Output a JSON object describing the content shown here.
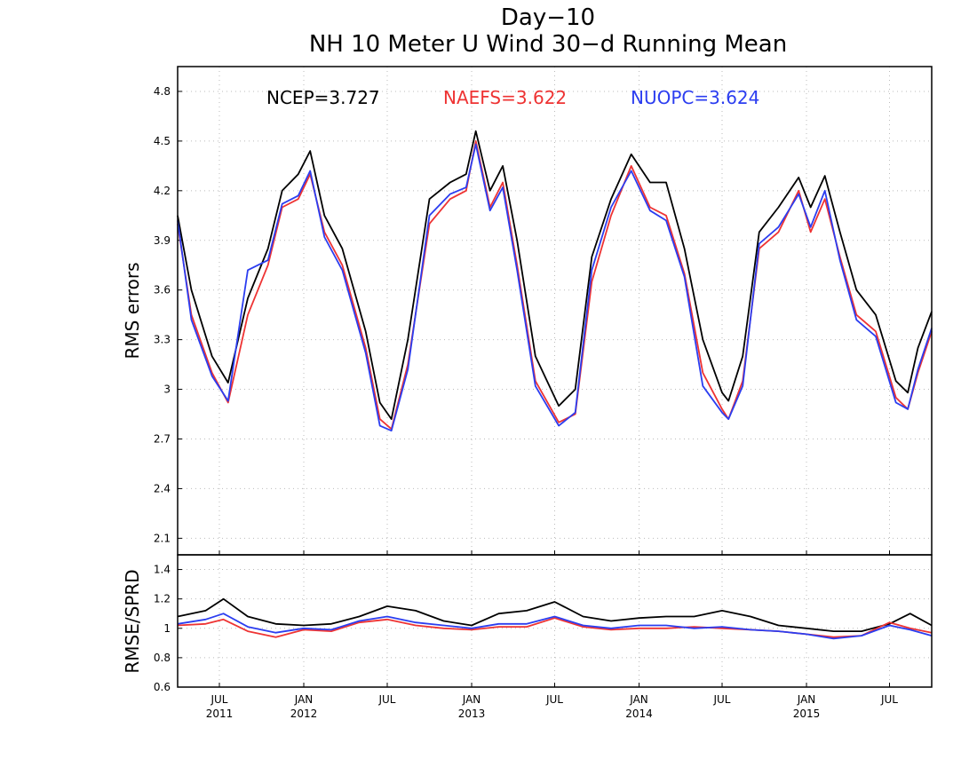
{
  "chart_data": [
    {
      "type": "line",
      "title": "Day−10",
      "subtitle": "NH 10 Meter U Wind 30−d Running Mean",
      "ylabel": "RMS errors",
      "xlabel": "",
      "ylim": [
        2.0,
        4.95
      ],
      "yticks": [
        "2.1",
        "2.4",
        "2.7",
        "3",
        "3.3",
        "3.6",
        "3.9",
        "4.2",
        "4.5",
        "4.8"
      ],
      "grid": true,
      "x_range": [
        "2011-04-01",
        "2015-10-01"
      ],
      "x_ticks": [
        {
          "date": "2011-07-01",
          "month": "JUL",
          "year": "2011"
        },
        {
          "date": "2012-01-01",
          "month": "JAN",
          "year": "2012"
        },
        {
          "date": "2012-07-01",
          "month": "JUL",
          "year": ""
        },
        {
          "date": "2013-01-01",
          "month": "JAN",
          "year": "2013"
        },
        {
          "date": "2013-07-01",
          "month": "JUL",
          "year": ""
        },
        {
          "date": "2014-01-01",
          "month": "JAN",
          "year": "2014"
        },
        {
          "date": "2014-07-01",
          "month": "JUL",
          "year": ""
        },
        {
          "date": "2015-01-01",
          "month": "JAN",
          "year": "2015"
        },
        {
          "date": "2015-07-01",
          "month": "JUL",
          "year": ""
        }
      ],
      "annotations": [
        {
          "text": "NCEP=3.727",
          "color": "#000000"
        },
        {
          "text": "NAEFS=3.622",
          "color": "#ee3333"
        },
        {
          "text": "NUOPC=3.624",
          "color": "#2b3df0"
        }
      ],
      "series": [
        {
          "color": "#000000",
          "x": [
            "2011-04-01",
            "2011-05-01",
            "2011-06-15",
            "2011-07-20",
            "2011-09-01",
            "2011-10-15",
            "2011-11-15",
            "2011-12-20",
            "2012-01-15",
            "2012-02-15",
            "2012-03-25",
            "2012-05-15",
            "2012-06-15",
            "2012-07-10",
            "2012-08-15",
            "2012-10-01",
            "2012-11-15",
            "2012-12-20",
            "2013-01-10",
            "2013-02-10",
            "2013-03-10",
            "2013-04-10",
            "2013-05-20",
            "2013-07-10",
            "2013-08-15",
            "2013-09-20",
            "2013-11-01",
            "2013-12-15",
            "2014-01-25",
            "2014-03-01",
            "2014-04-10",
            "2014-05-20",
            "2014-07-01",
            "2014-07-15",
            "2014-08-15",
            "2014-09-20",
            "2014-11-01",
            "2014-12-15",
            "2015-01-10",
            "2015-02-10",
            "2015-03-15",
            "2015-04-20",
            "2015-06-01",
            "2015-07-15",
            "2015-08-10",
            "2015-09-01",
            "2015-10-01"
          ],
          "y": [
            4.05,
            3.6,
            3.2,
            3.04,
            3.55,
            3.85,
            4.2,
            4.3,
            4.44,
            4.05,
            3.85,
            3.35,
            2.92,
            2.82,
            3.3,
            4.15,
            4.25,
            4.3,
            4.56,
            4.2,
            4.35,
            3.9,
            3.2,
            2.9,
            3.0,
            3.8,
            4.15,
            4.42,
            4.25,
            4.25,
            3.85,
            3.3,
            2.98,
            2.93,
            3.2,
            3.95,
            4.1,
            4.28,
            4.1,
            4.29,
            3.95,
            3.6,
            3.45,
            3.05,
            2.98,
            3.25,
            3.47
          ]
        },
        {
          "color": "#ee3333",
          "x": [
            "2011-04-01",
            "2011-05-01",
            "2011-06-15",
            "2011-07-20",
            "2011-09-01",
            "2011-10-15",
            "2011-11-15",
            "2011-12-20",
            "2012-01-15",
            "2012-02-15",
            "2012-03-25",
            "2012-05-15",
            "2012-06-15",
            "2012-07-10",
            "2012-08-15",
            "2012-10-01",
            "2012-11-15",
            "2012-12-20",
            "2013-01-10",
            "2013-02-10",
            "2013-03-10",
            "2013-04-10",
            "2013-05-20",
            "2013-07-10",
            "2013-08-15",
            "2013-09-20",
            "2013-11-01",
            "2013-12-15",
            "2014-01-25",
            "2014-03-01",
            "2014-04-10",
            "2014-05-20",
            "2014-07-01",
            "2014-07-15",
            "2014-08-15",
            "2014-09-20",
            "2014-11-01",
            "2014-12-15",
            "2015-01-10",
            "2015-02-10",
            "2015-03-15",
            "2015-04-20",
            "2015-06-01",
            "2015-07-15",
            "2015-08-10",
            "2015-09-01",
            "2015-10-01"
          ],
          "y": [
            4.0,
            3.45,
            3.1,
            2.92,
            3.45,
            3.75,
            4.1,
            4.15,
            4.3,
            3.95,
            3.75,
            3.25,
            2.82,
            2.76,
            3.15,
            4.0,
            4.15,
            4.2,
            4.5,
            4.1,
            4.25,
            3.75,
            3.05,
            2.8,
            2.85,
            3.65,
            4.05,
            4.35,
            4.1,
            4.05,
            3.7,
            3.1,
            2.88,
            2.82,
            3.05,
            3.85,
            3.95,
            4.2,
            3.95,
            4.15,
            3.8,
            3.45,
            3.35,
            2.95,
            2.88,
            3.1,
            3.35
          ]
        },
        {
          "color": "#2b3df0",
          "x": [
            "2011-04-01",
            "2011-05-01",
            "2011-06-15",
            "2011-07-20",
            "2011-09-01",
            "2011-10-15",
            "2011-11-15",
            "2011-12-20",
            "2012-01-15",
            "2012-02-15",
            "2012-03-25",
            "2012-05-15",
            "2012-06-15",
            "2012-07-10",
            "2012-08-15",
            "2012-10-01",
            "2012-11-15",
            "2012-12-20",
            "2013-01-10",
            "2013-02-10",
            "2013-03-10",
            "2013-04-10",
            "2013-05-20",
            "2013-07-10",
            "2013-08-15",
            "2013-09-20",
            "2013-11-01",
            "2013-12-15",
            "2014-01-25",
            "2014-03-01",
            "2014-04-10",
            "2014-05-20",
            "2014-07-01",
            "2014-07-15",
            "2014-08-15",
            "2014-09-20",
            "2014-11-01",
            "2014-12-15",
            "2015-01-10",
            "2015-02-10",
            "2015-03-15",
            "2015-04-20",
            "2015-06-01",
            "2015-07-15",
            "2015-08-10",
            "2015-09-01",
            "2015-10-01"
          ],
          "y": [
            4.02,
            3.42,
            3.08,
            2.93,
            3.72,
            3.78,
            4.12,
            4.17,
            4.32,
            3.92,
            3.72,
            3.22,
            2.78,
            2.75,
            3.12,
            4.05,
            4.18,
            4.22,
            4.48,
            4.08,
            4.22,
            3.72,
            3.02,
            2.78,
            2.86,
            3.72,
            4.1,
            4.32,
            4.08,
            4.02,
            3.68,
            3.02,
            2.86,
            2.82,
            3.02,
            3.88,
            3.98,
            4.18,
            3.98,
            4.2,
            3.78,
            3.42,
            3.32,
            2.92,
            2.88,
            3.12,
            3.37
          ]
        }
      ]
    },
    {
      "type": "line",
      "title": "",
      "ylabel": "RMSE/SPRD",
      "xlabel": "",
      "ylim": [
        0.6,
        1.5
      ],
      "yticks": [
        "0.6",
        "0.8",
        "1",
        "1.2",
        "1.4"
      ],
      "grid": true,
      "x_range": [
        "2011-04-01",
        "2015-10-01"
      ],
      "series": [
        {
          "color": "#000000",
          "x": [
            "2011-04-01",
            "2011-06-01",
            "2011-07-10",
            "2011-09-01",
            "2011-11-01",
            "2012-01-01",
            "2012-03-01",
            "2012-05-01",
            "2012-07-01",
            "2012-09-01",
            "2012-11-01",
            "2013-01-01",
            "2013-03-01",
            "2013-05-01",
            "2013-07-01",
            "2013-09-01",
            "2013-11-01",
            "2014-01-01",
            "2014-03-01",
            "2014-05-01",
            "2014-07-01",
            "2014-09-01",
            "2014-11-01",
            "2015-01-01",
            "2015-03-01",
            "2015-05-01",
            "2015-07-01",
            "2015-08-15",
            "2015-10-01"
          ],
          "y": [
            1.08,
            1.12,
            1.2,
            1.08,
            1.03,
            1.02,
            1.03,
            1.08,
            1.15,
            1.12,
            1.05,
            1.02,
            1.1,
            1.12,
            1.18,
            1.08,
            1.05,
            1.07,
            1.08,
            1.08,
            1.12,
            1.08,
            1.02,
            1.0,
            0.98,
            0.98,
            1.03,
            1.1,
            1.02
          ]
        },
        {
          "color": "#ee3333",
          "x": [
            "2011-04-01",
            "2011-06-01",
            "2011-07-10",
            "2011-09-01",
            "2011-11-01",
            "2012-01-01",
            "2012-03-01",
            "2012-05-01",
            "2012-07-01",
            "2012-09-01",
            "2012-11-01",
            "2013-01-01",
            "2013-03-01",
            "2013-05-01",
            "2013-07-01",
            "2013-09-01",
            "2013-11-01",
            "2014-01-01",
            "2014-03-01",
            "2014-05-01",
            "2014-07-01",
            "2014-09-01",
            "2014-11-01",
            "2015-01-01",
            "2015-03-01",
            "2015-05-01",
            "2015-07-01",
            "2015-08-15",
            "2015-10-01"
          ],
          "y": [
            1.02,
            1.03,
            1.06,
            0.98,
            0.94,
            0.99,
            0.98,
            1.04,
            1.06,
            1.02,
            1.0,
            0.99,
            1.01,
            1.01,
            1.07,
            1.01,
            0.99,
            1.0,
            1.0,
            1.01,
            1.0,
            0.99,
            0.98,
            0.96,
            0.94,
            0.95,
            1.04,
            1.0,
            0.97
          ]
        },
        {
          "color": "#2b3df0",
          "x": [
            "2011-04-01",
            "2011-06-01",
            "2011-07-10",
            "2011-09-01",
            "2011-11-01",
            "2012-01-01",
            "2012-03-01",
            "2012-05-01",
            "2012-07-01",
            "2012-09-01",
            "2012-11-01",
            "2013-01-01",
            "2013-03-01",
            "2013-05-01",
            "2013-07-01",
            "2013-09-01",
            "2013-11-01",
            "2014-01-01",
            "2014-03-01",
            "2014-05-01",
            "2014-07-01",
            "2014-09-01",
            "2014-11-01",
            "2015-01-01",
            "2015-03-01",
            "2015-05-01",
            "2015-07-01",
            "2015-08-15",
            "2015-10-01"
          ],
          "y": [
            1.03,
            1.06,
            1.1,
            1.01,
            0.97,
            1.0,
            0.99,
            1.05,
            1.08,
            1.04,
            1.02,
            1.0,
            1.03,
            1.03,
            1.08,
            1.02,
            1.0,
            1.02,
            1.02,
            1.0,
            1.01,
            0.99,
            0.98,
            0.96,
            0.93,
            0.95,
            1.02,
            0.99,
            0.95
          ]
        }
      ]
    }
  ]
}
